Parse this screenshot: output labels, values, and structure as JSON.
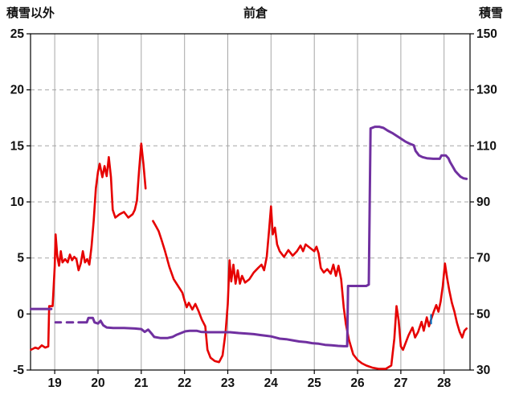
{
  "chart_data": {
    "type": "line",
    "title": "前倉",
    "left_axis": {
      "label": "積雪以外",
      "min": -5,
      "max": 25,
      "ticks": [
        25,
        20,
        15,
        10,
        5,
        0,
        -5
      ]
    },
    "right_axis": {
      "label": "積雪",
      "min": 30,
      "max": 150,
      "ticks": [
        150,
        130,
        110,
        90,
        70,
        50,
        30
      ]
    },
    "x_axis": {
      "min": 18.44,
      "max": 28.6,
      "ticks": [
        19,
        20,
        21,
        22,
        23,
        24,
        25,
        26,
        27,
        28
      ]
    },
    "grid": {
      "vertical": "solid",
      "horizontal": "dashed",
      "zero_line": "solid",
      "color": "#a6a6a6"
    },
    "legend": "none",
    "series": [
      {
        "id": "non-snow-red-line",
        "name": "積雪以外",
        "axis": "left",
        "color": "#e60000",
        "width": 2.6,
        "segments": [
          [
            [
              18.45,
              -3.2
            ],
            [
              18.55,
              -3.0
            ],
            [
              18.62,
              -3.1
            ],
            [
              18.7,
              -2.8
            ],
            [
              18.78,
              -3.0
            ],
            [
              18.85,
              -2.9
            ],
            [
              18.87,
              0.7
            ],
            [
              18.95,
              0.7
            ],
            [
              19.0,
              4.2
            ],
            [
              19.02,
              7.1
            ],
            [
              19.06,
              5.1
            ],
            [
              19.1,
              4.3
            ],
            [
              19.14,
              5.6
            ],
            [
              19.18,
              4.6
            ],
            [
              19.24,
              4.9
            ],
            [
              19.3,
              4.6
            ],
            [
              19.35,
              5.3
            ],
            [
              19.4,
              4.8
            ],
            [
              19.45,
              5.1
            ],
            [
              19.5,
              4.9
            ],
            [
              19.55,
              3.9
            ],
            [
              19.6,
              4.5
            ],
            [
              19.65,
              5.6
            ],
            [
              19.7,
              4.6
            ],
            [
              19.75,
              4.9
            ],
            [
              19.8,
              4.4
            ],
            [
              19.85,
              6.0
            ],
            [
              19.9,
              8.3
            ],
            [
              19.95,
              11.2
            ],
            [
              20.0,
              12.7
            ],
            [
              20.04,
              13.4
            ],
            [
              20.1,
              12.2
            ],
            [
              20.15,
              13.2
            ],
            [
              20.2,
              12.3
            ],
            [
              20.25,
              14.0
            ],
            [
              20.3,
              12.2
            ],
            [
              20.34,
              9.3
            ],
            [
              20.4,
              8.6
            ],
            [
              20.5,
              8.9
            ],
            [
              20.6,
              9.1
            ],
            [
              20.7,
              8.6
            ],
            [
              20.8,
              8.9
            ],
            [
              20.85,
              9.3
            ],
            [
              20.9,
              10.1
            ],
            [
              20.95,
              12.8
            ],
            [
              21.0,
              15.2
            ],
            [
              21.05,
              13.4
            ],
            [
              21.1,
              11.2
            ]
          ],
          [
            [
              21.27,
              8.3
            ],
            [
              21.33,
              7.9
            ],
            [
              21.4,
              7.4
            ],
            [
              21.47,
              6.6
            ],
            [
              21.55,
              5.6
            ],
            [
              21.65,
              4.2
            ],
            [
              21.75,
              3.1
            ],
            [
              21.85,
              2.5
            ],
            [
              21.95,
              1.9
            ],
            [
              22.0,
              1.2
            ],
            [
              22.05,
              0.6
            ],
            [
              22.1,
              1.0
            ],
            [
              22.18,
              0.4
            ],
            [
              22.25,
              0.9
            ],
            [
              22.32,
              0.3
            ],
            [
              22.4,
              -0.5
            ],
            [
              22.48,
              -1.1
            ],
            [
              22.53,
              -3.2
            ],
            [
              22.6,
              -3.9
            ],
            [
              22.7,
              -4.2
            ],
            [
              22.8,
              -4.3
            ],
            [
              22.88,
              -3.7
            ],
            [
              22.95,
              -1.6
            ],
            [
              23.0,
              0.9
            ],
            [
              23.04,
              4.8
            ],
            [
              23.08,
              2.9
            ],
            [
              23.13,
              4.4
            ],
            [
              23.18,
              2.7
            ],
            [
              23.23,
              3.9
            ],
            [
              23.28,
              2.7
            ],
            [
              23.33,
              3.4
            ],
            [
              23.4,
              2.8
            ],
            [
              23.5,
              3.1
            ],
            [
              23.6,
              3.7
            ],
            [
              23.7,
              4.1
            ],
            [
              23.78,
              4.4
            ],
            [
              23.84,
              3.9
            ],
            [
              23.9,
              5.1
            ],
            [
              23.95,
              7.3
            ],
            [
              24.0,
              9.6
            ],
            [
              24.04,
              7.1
            ],
            [
              24.09,
              7.7
            ],
            [
              24.14,
              6.2
            ],
            [
              24.2,
              5.6
            ],
            [
              24.3,
              5.1
            ],
            [
              24.4,
              5.7
            ],
            [
              24.5,
              5.2
            ],
            [
              24.6,
              5.6
            ],
            [
              24.68,
              6.1
            ],
            [
              24.74,
              5.6
            ],
            [
              24.8,
              6.2
            ],
            [
              24.9,
              5.9
            ],
            [
              25.0,
              5.6
            ],
            [
              25.05,
              6.0
            ],
            [
              25.1,
              5.4
            ],
            [
              25.15,
              4.1
            ],
            [
              25.22,
              3.7
            ],
            [
              25.3,
              4.0
            ],
            [
              25.38,
              3.6
            ],
            [
              25.44,
              4.4
            ],
            [
              25.5,
              3.4
            ],
            [
              25.56,
              4.3
            ],
            [
              25.62,
              3.1
            ],
            [
              25.68,
              0.6
            ],
            [
              25.73,
              -0.9
            ],
            [
              25.8,
              -2.3
            ],
            [
              25.9,
              -3.6
            ],
            [
              26.0,
              -4.1
            ],
            [
              26.1,
              -4.4
            ],
            [
              26.2,
              -4.6
            ],
            [
              26.35,
              -4.8
            ],
            [
              26.5,
              -4.9
            ],
            [
              26.65,
              -4.9
            ],
            [
              26.78,
              -4.6
            ],
            [
              26.85,
              -2.2
            ],
            [
              26.9,
              0.7
            ],
            [
              26.95,
              -0.6
            ],
            [
              27.0,
              -2.9
            ],
            [
              27.05,
              -3.2
            ],
            [
              27.1,
              -2.7
            ],
            [
              27.18,
              -1.9
            ],
            [
              27.27,
              -1.2
            ],
            [
              27.33,
              -2.1
            ],
            [
              27.4,
              -1.6
            ],
            [
              27.48,
              -0.7
            ],
            [
              27.53,
              -1.5
            ],
            [
              27.6,
              -0.3
            ],
            [
              27.65,
              -1.1
            ],
            [
              27.7,
              -0.5
            ],
            [
              27.76,
              0.2
            ],
            [
              27.82,
              0.8
            ],
            [
              27.87,
              0.2
            ],
            [
              27.92,
              1.1
            ],
            [
              27.97,
              2.5
            ],
            [
              28.02,
              4.5
            ],
            [
              28.07,
              3.2
            ],
            [
              28.12,
              2.1
            ],
            [
              28.18,
              1.0
            ],
            [
              28.24,
              0.2
            ],
            [
              28.3,
              -0.8
            ],
            [
              28.36,
              -1.6
            ],
            [
              28.42,
              -2.1
            ],
            [
              28.47,
              -1.5
            ],
            [
              28.52,
              -1.3
            ]
          ]
        ]
      },
      {
        "id": "snow-depth-purple-line",
        "name": "積雪",
        "axis": "right",
        "color": "#7030a0",
        "width": 3,
        "segments": [
          [
            [
              18.45,
              51.8
            ],
            [
              18.92,
              51.8
            ]
          ],
          [
            [
              19.02,
              47.0
            ],
            [
              19.14,
              47.0
            ]
          ],
          [
            [
              19.28,
              47.0
            ],
            [
              19.42,
              47.0
            ]
          ],
          [
            [
              19.55,
              47.0
            ],
            [
              19.74,
              47.0
            ],
            [
              19.78,
              48.6
            ],
            [
              19.88,
              48.6
            ],
            [
              19.92,
              47.0
            ],
            [
              20.0,
              46.6
            ],
            [
              20.06,
              47.6
            ],
            [
              20.12,
              46.0
            ],
            [
              20.2,
              45.2
            ],
            [
              20.35,
              45.0
            ],
            [
              20.6,
              45.0
            ],
            [
              20.85,
              44.8
            ],
            [
              21.0,
              44.6
            ],
            [
              21.08,
              43.6
            ],
            [
              21.16,
              44.4
            ],
            [
              21.24,
              43.0
            ],
            [
              21.3,
              41.8
            ],
            [
              21.45,
              41.4
            ],
            [
              21.6,
              41.4
            ],
            [
              21.72,
              41.8
            ],
            [
              21.82,
              42.6
            ],
            [
              21.92,
              43.2
            ],
            [
              22.02,
              43.8
            ],
            [
              22.12,
              44.0
            ],
            [
              22.28,
              44.0
            ],
            [
              22.38,
              43.6
            ],
            [
              22.55,
              43.5
            ],
            [
              22.8,
              43.5
            ],
            [
              23.05,
              43.5
            ],
            [
              23.25,
              43.2
            ],
            [
              23.45,
              43.0
            ],
            [
              23.6,
              42.8
            ],
            [
              23.75,
              42.5
            ],
            [
              23.9,
              42.2
            ],
            [
              24.0,
              42.0
            ],
            [
              24.1,
              41.6
            ],
            [
              24.2,
              41.2
            ],
            [
              24.35,
              41.0
            ],
            [
              24.5,
              40.6
            ],
            [
              24.65,
              40.2
            ],
            [
              24.8,
              40.0
            ],
            [
              24.95,
              39.6
            ],
            [
              25.1,
              39.4
            ],
            [
              25.25,
              39.0
            ],
            [
              25.4,
              38.8
            ],
            [
              25.55,
              38.6
            ],
            [
              25.68,
              38.5
            ],
            [
              25.76,
              38.5
            ],
            [
              25.78,
              60.0
            ],
            [
              26.2,
              60.0
            ],
            [
              26.26,
              60.5
            ],
            [
              26.3,
              116.2
            ],
            [
              26.4,
              116.8
            ],
            [
              26.5,
              116.8
            ],
            [
              26.6,
              116.4
            ],
            [
              26.7,
              115.4
            ],
            [
              26.8,
              114.6
            ],
            [
              26.9,
              113.6
            ],
            [
              27.0,
              112.6
            ],
            [
              27.1,
              111.6
            ],
            [
              27.2,
              110.8
            ],
            [
              27.3,
              110.2
            ],
            [
              27.34,
              108.2
            ],
            [
              27.42,
              106.6
            ],
            [
              27.5,
              106.0
            ],
            [
              27.6,
              105.6
            ],
            [
              27.75,
              105.4
            ],
            [
              27.9,
              105.4
            ],
            [
              27.94,
              106.6
            ],
            [
              28.04,
              106.6
            ],
            [
              28.1,
              105.6
            ],
            [
              28.14,
              104.2
            ],
            [
              28.2,
              102.6
            ],
            [
              28.26,
              101.0
            ],
            [
              28.32,
              100.0
            ],
            [
              28.38,
              99.0
            ],
            [
              28.45,
              98.4
            ],
            [
              28.52,
              98.2
            ]
          ]
        ]
      },
      {
        "id": "blue-tick-mark",
        "name": "blue-tick",
        "axis": "left",
        "color": "#0070c0",
        "width": 2.2,
        "segments": [
          [
            [
              27.7,
              -0.1
            ],
            [
              27.7,
              -0.85
            ]
          ]
        ]
      }
    ]
  }
}
